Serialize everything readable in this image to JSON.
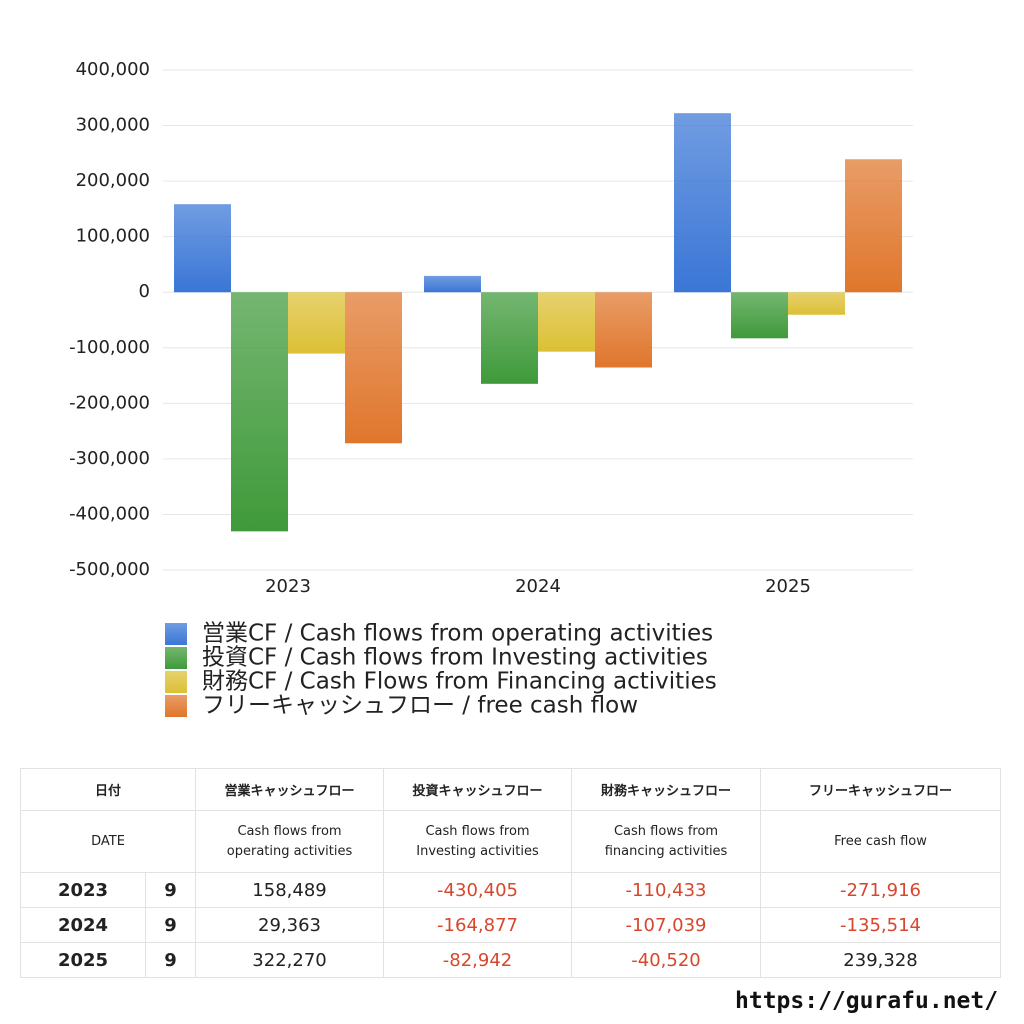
{
  "chart_data": {
    "type": "bar",
    "categories": [
      "2023",
      "2024",
      "2025"
    ],
    "series": [
      {
        "name": "営業CF / Cash flows from operating activities",
        "color": "#3a76d6",
        "values": [
          158489,
          29363,
          322270
        ]
      },
      {
        "name": "投資CF / Cash flows from Investing activities",
        "color": "#3f9a3a",
        "values": [
          -430405,
          -164877,
          -82942
        ]
      },
      {
        "name": "財務CF / Cash Flows from Financing activities",
        "color": "#dcc035",
        "values": [
          -110433,
          -107039,
          -40520
        ]
      },
      {
        "name": "フリーキャッシュフロー / free cash flow",
        "color": "#e0762c",
        "values": [
          -271916,
          -135514,
          239328
        ]
      }
    ],
    "ylim": [
      -500000,
      400000
    ],
    "yticks": [
      {
        "value": -500000,
        "label": "-500,000"
      },
      {
        "value": -400000,
        "label": "-400,000"
      },
      {
        "value": -300000,
        "label": "-300,000"
      },
      {
        "value": -200000,
        "label": "-200,000"
      },
      {
        "value": -100000,
        "label": "-100,000"
      },
      0,
      {
        "value": 100000,
        "label": "100,000"
      },
      {
        "value": 200000,
        "label": "200,000"
      },
      {
        "value": 300000,
        "label": "300,000"
      },
      {
        "value": 400000,
        "label": "400,000"
      }
    ],
    "grid": true
  },
  "table": {
    "header": [
      "日付",
      "営業キャッシュフロー",
      "投資キャッシュフロー",
      "財務キャッシュフロー",
      "フリーキャッシュフロー"
    ],
    "subheader": [
      "DATE",
      "Cash flows from\noperating activities",
      "Cash flows from\nInvesting activities",
      "Cash flows from\nfinancing activities",
      "Free cash flow"
    ],
    "rows": [
      [
        "2023",
        "9",
        "158,489",
        "-430,405",
        "-110,433",
        "-271,916"
      ],
      [
        "2024",
        "9",
        "29,363",
        "-164,877",
        "-107,039",
        "-135,514"
      ],
      [
        "2025",
        "9",
        "322,270",
        "-82,942",
        "-40,520",
        "239,328"
      ]
    ]
  },
  "footer": "https://gurafu.net/"
}
